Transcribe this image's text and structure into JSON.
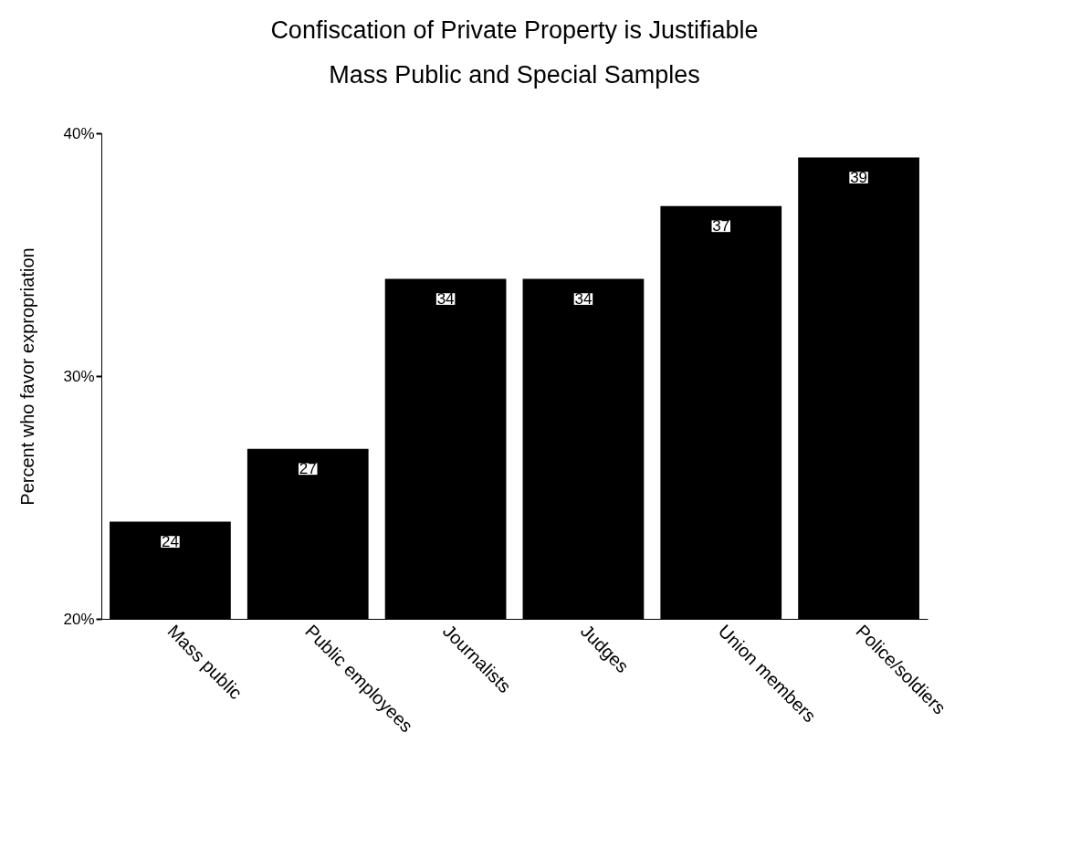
{
  "chart_data": {
    "type": "bar",
    "title": "Confiscation of Private Property is Justifiable",
    "subtitle": "Mass Public and Special Samples",
    "ylabel": "Percent who favor expropriation",
    "categories": [
      "Mass public",
      "Public employees",
      "Journalists",
      "Judges",
      "Union members",
      "Police/soldiers"
    ],
    "values": [
      24,
      27,
      34,
      34,
      37,
      39
    ],
    "color": "#000000",
    "data_labels": true,
    "ylim": [
      20,
      40
    ],
    "yticks": [
      {
        "value": 20,
        "label": "20%"
      },
      {
        "value": 30,
        "label": "30%"
      },
      {
        "value": 40,
        "label": "40%"
      }
    ]
  }
}
